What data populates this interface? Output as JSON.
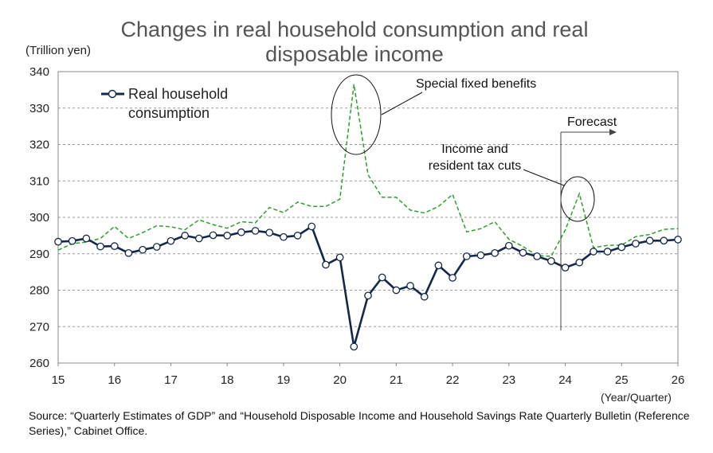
{
  "chart_data": {
    "type": "line",
    "title": "Changes in real household consumption and real disposable income",
    "ylabel": "(Trillion yen)",
    "xlabel": "(Year/Quarter)",
    "ylim": [
      260,
      340
    ],
    "yticks": [
      260,
      270,
      280,
      290,
      300,
      310,
      320,
      330,
      340
    ],
    "xticks": [
      "15",
      "16",
      "17",
      "18",
      "19",
      "20",
      "21",
      "22",
      "23",
      "24",
      "25",
      "26"
    ],
    "grid": true,
    "legend_position": "top-left",
    "series": [
      {
        "name": "Real household consumption",
        "color": "#14284b",
        "style": "solid-with-circle-markers",
        "values": [
          293.3,
          293.5,
          294.2,
          292.0,
          292.1,
          290.2,
          291.1,
          291.9,
          293.5,
          295.0,
          294.2,
          295.1,
          295.0,
          295.9,
          296.3,
          295.8,
          294.6,
          295.0,
          297.5,
          287.0,
          289.0,
          264.5,
          278.5,
          283.5,
          280.0,
          281.2,
          278.2,
          286.8,
          283.4,
          289.3,
          289.6,
          290.2,
          292.2,
          290.3,
          289.3,
          288.0,
          286.2,
          287.6,
          290.6,
          290.6,
          291.8,
          292.8,
          293.6,
          293.6,
          293.9
        ]
      },
      {
        "color": "#2ca02c",
        "style": "dashed",
        "values": [
          291.0,
          292.8,
          293.2,
          294.2,
          297.5,
          294.2,
          295.8,
          297.7,
          297.4,
          296.6,
          299.3,
          298.0,
          297.0,
          298.8,
          298.5,
          302.7,
          301.3,
          304.2,
          303.0,
          303.0,
          305.0,
          336.5,
          311.7,
          305.5,
          305.5,
          302.0,
          301.2,
          303.0,
          306.3,
          296.0,
          296.9,
          298.8,
          294.0,
          292.0,
          289.5,
          289.3,
          296.5,
          306.5,
          291.7,
          292.3,
          292.4,
          294.7,
          295.3,
          296.7,
          296.9
        ]
      }
    ],
    "annotations": [
      "Special fixed benefits",
      "Income and\nresident tax cuts",
      "Forecast"
    ],
    "source": "Source: “Quarterly Estimates of GDP” and “Household Disposable Income and Household Savings Rate Quarterly Bulletin (Reference Series),” Cabinet Office."
  }
}
